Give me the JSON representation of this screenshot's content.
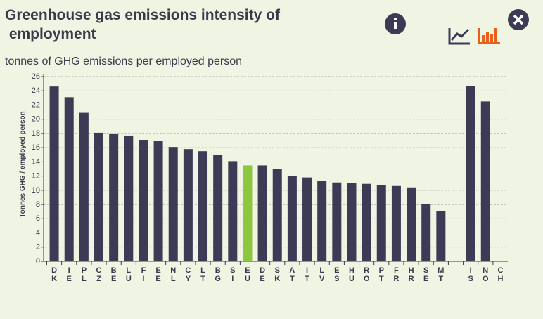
{
  "chart_data": {
    "type": "bar",
    "title": "Greenhouse gas emissions intensity of employment",
    "subtitle": "tonnes of GHG emissions per employed person",
    "y_label": "Tonnes GHG / employed person",
    "categories": [
      "DK",
      "IE",
      "PL",
      "CZ",
      "BE",
      "LU",
      "FI",
      "EE",
      "NL",
      "CY",
      "LT",
      "BG",
      "SI",
      "EU",
      "DE",
      "SK",
      "AT",
      "IT",
      "LV",
      "ES",
      "HU",
      "RO",
      "PT",
      "FR",
      "HR",
      "SE",
      "MT",
      null,
      "IS",
      "NO",
      "CH"
    ],
    "values": [
      24.6,
      23.1,
      20.9,
      18.1,
      17.9,
      17.7,
      17.1,
      17.0,
      16.1,
      15.8,
      15.5,
      15.0,
      14.1,
      13.5,
      13.5,
      13.0,
      12.0,
      11.8,
      11.3,
      11.1,
      11.0,
      10.9,
      10.7,
      10.6,
      10.4,
      8.1,
      7.1,
      null,
      24.7,
      22.5,
      null
    ],
    "color": "#3b3b55",
    "highlight": {
      "index": 13,
      "color": "#8dc63f"
    },
    "ylim": [
      0,
      26
    ],
    "yticks": [
      0,
      2,
      4,
      6,
      8,
      10,
      12,
      14,
      16,
      18,
      20,
      22,
      24,
      26
    ],
    "grid": true
  }
}
